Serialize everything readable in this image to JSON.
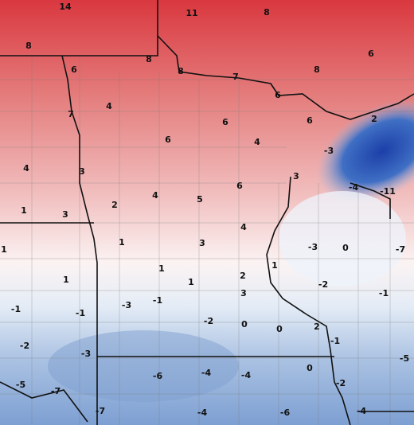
{
  "map": {
    "labels": [
      14,
      11,
      8,
      8,
      8,
      6,
      6,
      8,
      7,
      8,
      6,
      4,
      7,
      6,
      6,
      2,
      6,
      4,
      -3,
      4,
      3,
      3,
      6,
      -4,
      -11,
      4,
      5,
      2,
      1,
      3,
      4,
      1,
      3,
      -3,
      0,
      -7,
      1,
      1,
      1,
      2,
      1,
      1,
      -2,
      3,
      -1,
      -3,
      -1,
      -1,
      -1,
      -2,
      0,
      0,
      2,
      -1,
      -2,
      -3,
      -5,
      -6,
      -4,
      -4,
      0,
      -2,
      -5,
      -7,
      -7,
      -4,
      -6,
      -4
    ]
  }
}
